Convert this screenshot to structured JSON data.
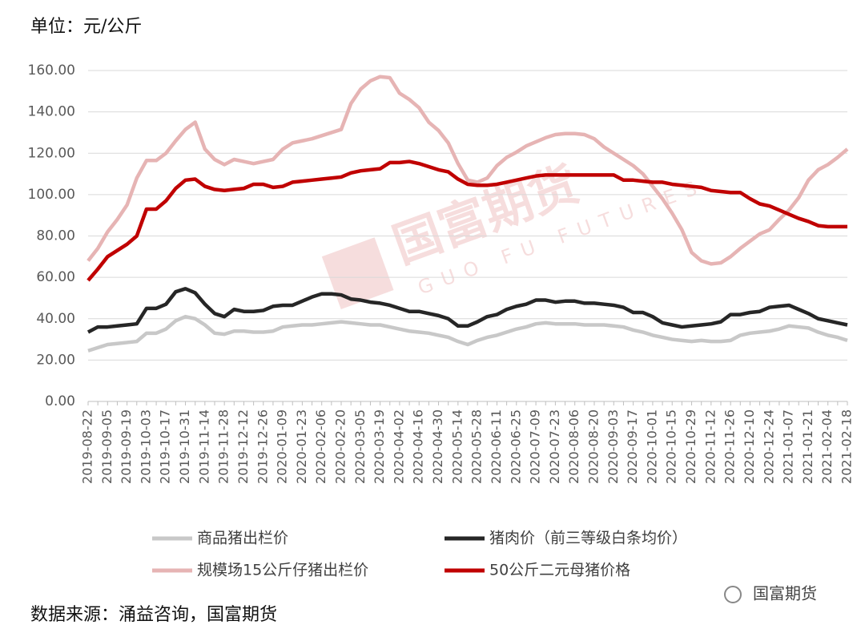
{
  "chart_data": {
    "type": "line",
    "unit_label": "单位：元/公斤",
    "source": "数据来源：涌益咨询，国富期货",
    "watermark": "国富期货",
    "watermark_en": "GUO FU FUTURES",
    "brand": "国富期货",
    "categories": [
      "2019-08-22",
      null,
      "2019-09-05",
      null,
      "2019-09-19",
      null,
      "2019-10-03",
      null,
      "2019-10-17",
      null,
      "2019-10-31",
      null,
      "2019-11-14",
      null,
      "2019-11-28",
      null,
      "2019-12-12",
      null,
      "2019-12-26",
      null,
      "2020-01-09",
      null,
      "2020-01-23",
      null,
      "2020-02-06",
      null,
      "2020-02-20",
      null,
      "2020-03-05",
      null,
      "2020-03-19",
      null,
      "2020-04-02",
      null,
      "2020-04-16",
      null,
      "2020-04-30",
      null,
      "2020-05-14",
      null,
      "2020-05-28",
      null,
      "2020-06-11",
      null,
      "2020-06-25",
      null,
      "2020-07-09",
      null,
      "2020-07-23",
      null,
      "2020-08-06",
      null,
      "2020-08-20",
      null,
      "2020-09-03",
      null,
      "2020-09-17",
      null,
      "2020-10-01",
      null,
      "2020-10-15",
      null,
      "2020-10-29",
      null,
      "2020-11-12",
      null,
      "2020-11-26",
      null,
      "2020-12-10",
      null,
      "2020-12-24",
      null,
      "2021-01-07",
      null,
      "2021-01-21",
      null,
      "2021-02-04",
      null,
      "2021-02-18"
    ],
    "series": [
      {
        "name": "商品猪出栏价",
        "color": "#c8c8c8",
        "values": [
          24.5,
          26,
          27.5,
          28,
          28.5,
          29,
          33,
          33,
          35,
          39,
          41,
          40,
          37,
          33,
          32.5,
          34,
          34,
          33.5,
          33.5,
          34,
          36,
          36.5,
          37,
          37,
          37.5,
          38,
          38.5,
          38,
          37.5,
          37,
          37,
          36,
          35,
          34,
          33.5,
          33,
          32,
          31,
          29,
          27.5,
          29.5,
          31,
          32,
          33.5,
          35,
          36,
          37.5,
          38,
          37.5,
          37.5,
          37.5,
          37,
          37,
          37,
          36.5,
          36,
          34.5,
          33.5,
          32,
          31,
          30,
          29.5,
          29,
          29.5,
          29,
          29,
          29.5,
          32,
          33,
          33.5,
          34,
          35,
          36.5,
          36,
          35.5,
          33.5,
          32,
          31,
          29.5
        ]
      },
      {
        "name": "猪肉价（前三等级白条均价）",
        "color": "#262626",
        "values": [
          33.5,
          36,
          36,
          36.5,
          37,
          37.5,
          45,
          45,
          47,
          53,
          54.5,
          52.5,
          47,
          42.5,
          41,
          44.5,
          43.5,
          43.5,
          44,
          46,
          46.5,
          46.5,
          48.5,
          50.5,
          52,
          52,
          51.5,
          49.5,
          49,
          48,
          47.5,
          46.5,
          45,
          43.5,
          43.5,
          42.5,
          41.5,
          40,
          36.5,
          36.5,
          38.5,
          41,
          42,
          44.5,
          46,
          47,
          49,
          49,
          48,
          48.5,
          48.5,
          47.5,
          47.5,
          47,
          46.5,
          45.5,
          43,
          43,
          41,
          38,
          37,
          36,
          36.5,
          37,
          37.5,
          38.5,
          42,
          42,
          43,
          43.5,
          45.5,
          46,
          46.5,
          44.5,
          42.5,
          40,
          39,
          38,
          37
        ]
      },
      {
        "name": "规模场15公斤仔猪出栏价",
        "color": "#e6b4b4",
        "values": [
          68,
          74,
          82,
          88,
          95,
          108,
          116.5,
          116.5,
          120,
          126,
          131.5,
          135,
          122,
          117,
          114.5,
          117,
          116,
          115,
          116,
          117,
          122,
          125,
          126,
          127,
          128.5,
          130,
          131.5,
          144,
          151,
          155,
          157,
          156.5,
          149,
          146,
          142,
          135,
          131,
          125,
          115,
          107,
          106,
          108,
          114,
          118,
          120.5,
          123.5,
          125.5,
          127.5,
          129,
          129.5,
          129.5,
          129,
          127,
          123,
          120,
          117,
          114,
          110,
          104,
          98,
          91,
          83,
          72,
          68,
          66.5,
          67,
          70,
          74,
          77.5,
          81,
          83,
          88,
          92.5,
          98.5,
          107,
          112,
          114.5,
          118,
          122
        ]
      },
      {
        "name": "50公斤二元母猪价格",
        "color": "#c00000",
        "values": [
          58.5,
          64,
          70,
          73,
          76,
          80,
          93,
          93,
          97,
          103,
          107,
          107.5,
          104,
          102.5,
          102,
          102.5,
          103,
          105,
          105,
          103.5,
          104,
          106,
          106.5,
          107,
          107.5,
          108,
          108.5,
          110.5,
          111.5,
          112,
          112.5,
          115.5,
          115.5,
          116,
          115,
          113.5,
          112,
          111,
          107.5,
          105,
          104.5,
          104.5,
          105,
          106,
          107,
          108,
          109,
          109.5,
          109.5,
          109.5,
          109.5,
          109.5,
          109.5,
          109.5,
          109.5,
          107,
          107,
          106.5,
          106,
          106,
          105,
          104.5,
          104,
          103.5,
          102,
          101.5,
          101,
          101,
          98,
          95.5,
          94.5,
          92.5,
          90.5,
          88.5,
          87,
          85,
          84.5,
          84.5,
          84.5
        ]
      }
    ],
    "ylim": [
      0,
      160
    ],
    "yticks": [
      {
        "value": 0,
        "label": "0.00"
      },
      {
        "value": 20,
        "label": "20.00"
      },
      {
        "value": 40,
        "label": "40.00"
      },
      {
        "value": 60,
        "label": "60.00"
      },
      {
        "value": 80,
        "label": "80.00"
      },
      {
        "value": 100,
        "label": "100.00"
      },
      {
        "value": 120,
        "label": "120.00"
      },
      {
        "value": 140,
        "label": "140.00"
      },
      {
        "value": 160,
        "label": "160.00"
      }
    ],
    "grid": true
  }
}
